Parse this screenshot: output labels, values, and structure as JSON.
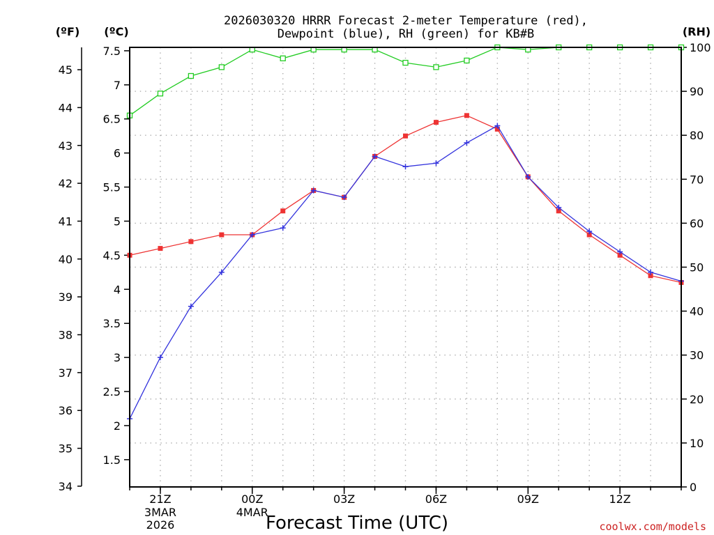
{
  "chart_data": {
    "type": "line",
    "title_line1": "2026030320 HRRR Forecast 2-meter Temperature (red),",
    "title_line2": "Dewpoint (blue), RH (green) for KB#B",
    "xlabel": "Forecast Time (UTC)",
    "credit": "coolwx.com/models",
    "units": {
      "fahrenheit": "(ºF)",
      "celsius": "(ºC)",
      "rh": "(RH)"
    },
    "x_hours": [
      20,
      21,
      22,
      23,
      24,
      25,
      26,
      27,
      28,
      29,
      30,
      31,
      32,
      33,
      34,
      35,
      36,
      37,
      38
    ],
    "x_ticks": [
      {
        "hour": 21,
        "label": "21Z",
        "date1": "3MAR",
        "date2": "2026"
      },
      {
        "hour": 24,
        "label": "00Z",
        "date1": "4MAR",
        "date2": ""
      },
      {
        "hour": 27,
        "label": "03Z",
        "date1": "",
        "date2": ""
      },
      {
        "hour": 30,
        "label": "06Z",
        "date1": "",
        "date2": ""
      },
      {
        "hour": 33,
        "label": "09Z",
        "date1": "",
        "date2": ""
      },
      {
        "hour": 36,
        "label": "12Z",
        "date1": "",
        "date2": ""
      }
    ],
    "xlim": [
      20,
      38
    ],
    "celsius_ylim": [
      1.1,
      7.55
    ],
    "celsius_ticks": [
      "1.5",
      "2",
      "2.5",
      "3",
      "3.5",
      "4",
      "4.5",
      "5",
      "5.5",
      "6",
      "6.5",
      "7",
      "7.5"
    ],
    "fahrenheit_ticks": [
      "34",
      "35",
      "36",
      "37",
      "38",
      "39",
      "40",
      "41",
      "42",
      "43",
      "44",
      "45"
    ],
    "rh_ylim": [
      0,
      100
    ],
    "rh_ticks": [
      "0",
      "10",
      "20",
      "30",
      "40",
      "50",
      "60",
      "70",
      "80",
      "90",
      "100"
    ],
    "series": [
      {
        "name": "Temperature",
        "color": "#ee3333",
        "marker": "filled-square",
        "values": [
          4.5,
          4.6,
          4.7,
          4.8,
          4.8,
          5.15,
          5.45,
          5.35,
          5.95,
          6.25,
          6.45,
          6.55,
          6.35,
          5.65,
          5.15,
          4.8,
          4.5,
          4.2,
          4.1
        ]
      },
      {
        "name": "Dewpoint",
        "color": "#3333dd",
        "marker": "plus",
        "values": [
          2.1,
          3.0,
          3.75,
          4.25,
          4.8,
          4.9,
          5.45,
          5.35,
          5.95,
          5.8,
          5.85,
          6.15,
          6.4,
          5.65,
          5.2,
          4.85,
          4.55,
          4.25,
          4.12
        ]
      },
      {
        "name": "RH",
        "color": "#22cc22",
        "marker": "open-square",
        "values": [
          84.5,
          89.5,
          93.5,
          95.5,
          99.5,
          97.5,
          99.5,
          99.5,
          99.5,
          96.5,
          95.5,
          97,
          100,
          99.5,
          100,
          100,
          100,
          100,
          100
        ]
      }
    ]
  }
}
